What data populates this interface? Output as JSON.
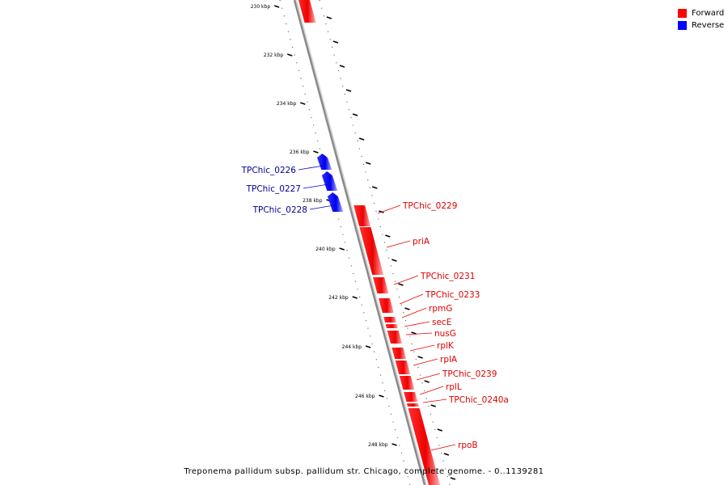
{
  "legend": {
    "forward": {
      "label": "Forward",
      "color": "#ff0000"
    },
    "reverse": {
      "label": "Reverse",
      "color": "#0000ff"
    }
  },
  "caption": "Treponema pallidum subsp. pallidum str. Chicago, complete genome. - 0..1139281",
  "ticks": [
    "230 kbp",
    "232 kbp",
    "234 kbp",
    "236 kbp",
    "238 kbp",
    "240 kbp",
    "242 kbp",
    "244 kbp",
    "246 kbp",
    "248 kbp"
  ],
  "genes": {
    "forward": [
      "TPChic_0229",
      "priA",
      "TPChic_0231",
      "TPChic_0233",
      "rpmG",
      "secE",
      "nusG",
      "rplK",
      "rplA",
      "TPChic_0239",
      "rplL",
      "TPChic_0240a",
      "rpoB"
    ],
    "reverse": [
      "TPChic_0226",
      "TPChic_0227",
      "TPChic_0228"
    ]
  }
}
